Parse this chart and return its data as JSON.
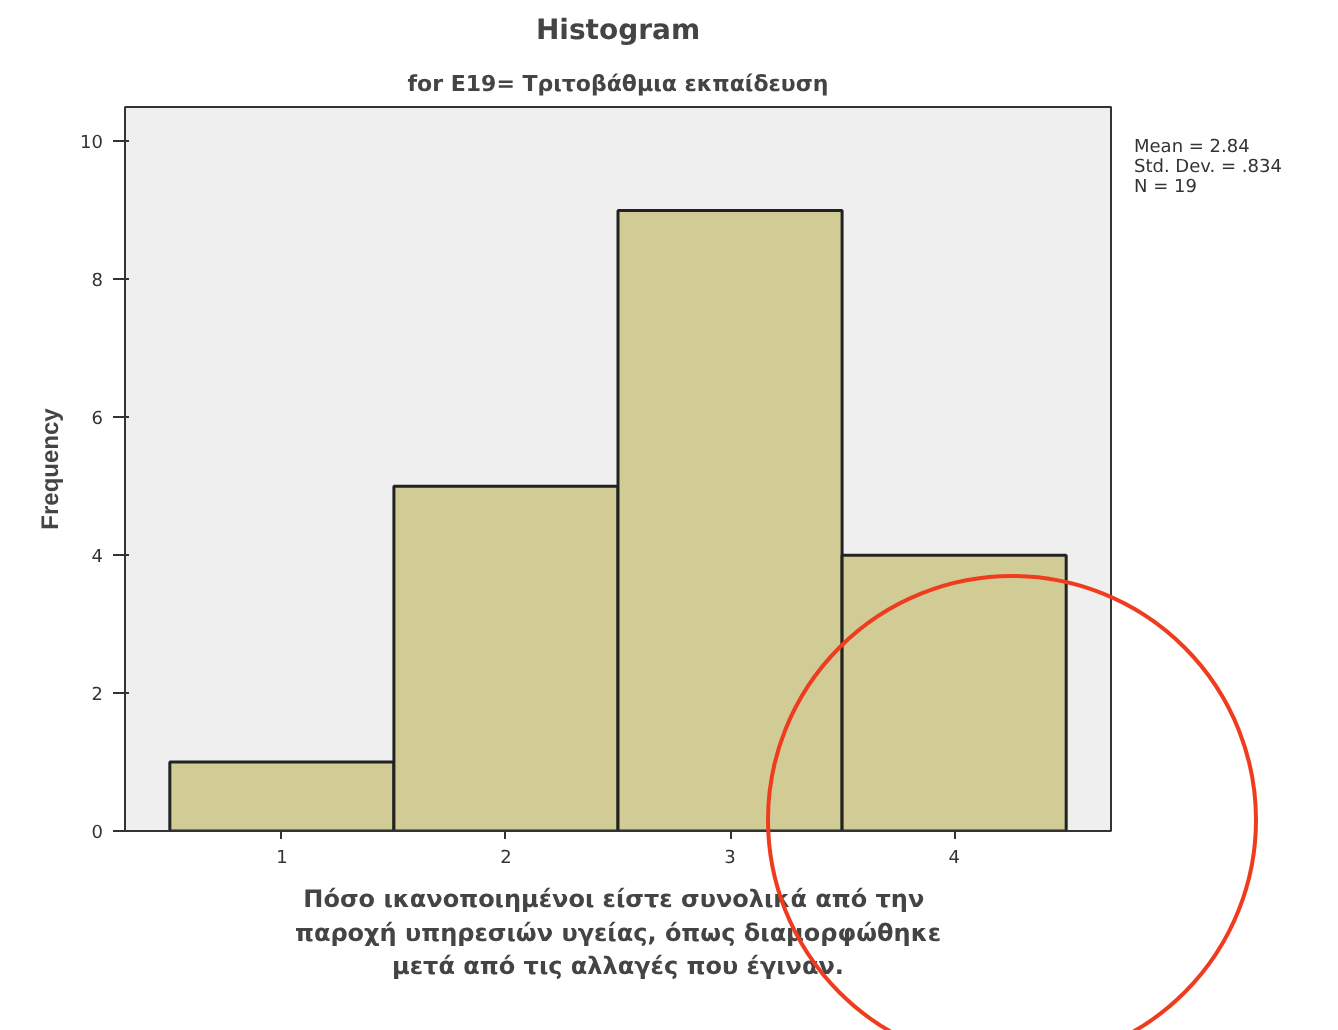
{
  "chart_data": {
    "type": "histogram",
    "title": "Histogram",
    "subtitle": "for E19= Τριτοβάθμια εκπαίδευση",
    "xlabel": "Πόσο ικανοποιημένοι είστε  συνολικά από την\nπαροχή υπηρεσιών υγείας, όπως διαμορφώθηκε\nμετά από τις αλλαγές που έγιναν.",
    "ylabel": "Frequency",
    "bins": [
      0.5,
      1.5,
      2.5,
      3.5,
      4.5
    ],
    "values": [
      1,
      5,
      9,
      4
    ],
    "color": "#d1cc96",
    "xlim": [
      0.3,
      4.7
    ],
    "xticks": [
      1,
      2,
      3,
      4
    ],
    "ylim": [
      0,
      10.5
    ],
    "yticks": [
      0,
      2,
      4,
      6,
      8,
      10
    ],
    "grid": false,
    "annotations": [
      "Mean = 2.84",
      "Std. Dev. = .834",
      "N = 19"
    ]
  }
}
